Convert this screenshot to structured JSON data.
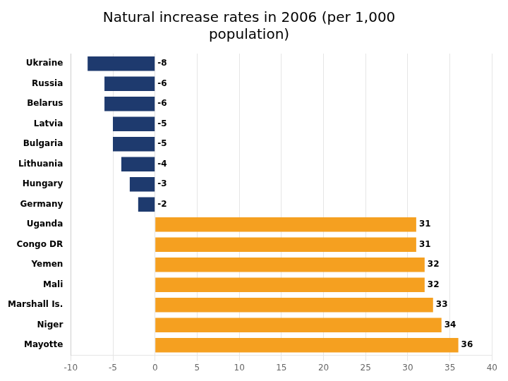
{
  "chart_data": {
    "type": "bar",
    "orientation": "horizontal",
    "title": "Natural increase rates in 2006 (per 1,000\npopulation)",
    "categories": [
      "Ukraine",
      "Russia",
      "Belarus",
      "Latvia",
      "Bulgaria",
      "Lithuania",
      "Hungary",
      "Germany",
      "Uganda",
      "Congo DR",
      "Yemen",
      "Mali",
      "Marshall Is.",
      "Niger",
      "Mayotte"
    ],
    "values": [
      -8,
      -6,
      -6,
      -5,
      -5,
      -4,
      -3,
      -2,
      31,
      31,
      32,
      32,
      33,
      34,
      36
    ],
    "colors": [
      "#1e3a6e",
      "#1e3a6e",
      "#1e3a6e",
      "#1e3a6e",
      "#1e3a6e",
      "#1e3a6e",
      "#1e3a6e",
      "#1e3a6e",
      "#f5a020",
      "#f5a020",
      "#f5a020",
      "#f5a020",
      "#f5a020",
      "#f5a020",
      "#f5a020"
    ],
    "xlim": [
      -10,
      40
    ],
    "xticks": [
      -10,
      -5,
      0,
      5,
      10,
      15,
      20,
      25,
      30,
      35,
      40
    ],
    "grid": true,
    "data_labels": true
  }
}
